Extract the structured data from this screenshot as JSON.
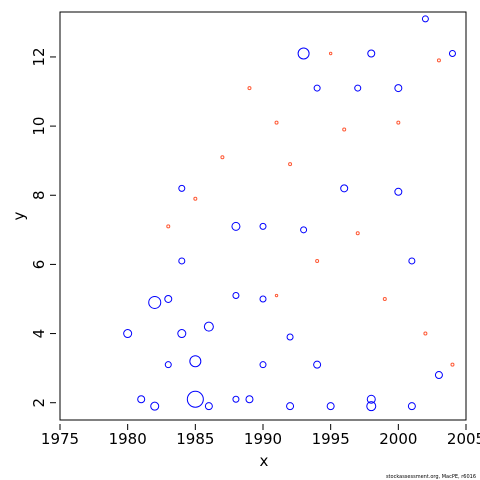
{
  "chart_data": {
    "type": "scatter",
    "title": "",
    "xlabel": "x",
    "ylabel": "y",
    "xlim": [
      1975,
      2005
    ],
    "ylim": [
      1.5,
      13.3
    ],
    "xticks": [
      1975,
      1980,
      1985,
      1990,
      1995,
      2000,
      2005
    ],
    "yticks": [
      2,
      4,
      6,
      8,
      10,
      12
    ],
    "grid": false,
    "legend": "none",
    "footnote": "stockassessment.org, MacPE, r6016",
    "colors": {
      "positive": "#0000ff",
      "negative": "#ff5a36",
      "axis": "#000000"
    },
    "series": [
      {
        "marker": "circle-open",
        "color": "#0000ff",
        "points": [
          {
            "x": 1980,
            "y": 4,
            "s": 0.4
          },
          {
            "x": 1981,
            "y": 2.1,
            "s": 0.35
          },
          {
            "x": 1982,
            "y": 1.9,
            "s": 0.4
          },
          {
            "x": 1982,
            "y": 4.9,
            "s": 0.6
          },
          {
            "x": 1983,
            "y": 3.1,
            "s": 0.3
          },
          {
            "x": 1983,
            "y": 5,
            "s": 0.35
          },
          {
            "x": 1984,
            "y": 4,
            "s": 0.4
          },
          {
            "x": 1984,
            "y": 6.1,
            "s": 0.3
          },
          {
            "x": 1984,
            "y": 8.2,
            "s": 0.3
          },
          {
            "x": 1985,
            "y": 2.1,
            "s": 0.8
          },
          {
            "x": 1985,
            "y": 3.2,
            "s": 0.55
          },
          {
            "x": 1986,
            "y": 4.2,
            "s": 0.45
          },
          {
            "x": 1986,
            "y": 1.9,
            "s": 0.35
          },
          {
            "x": 1988,
            "y": 7.1,
            "s": 0.4
          },
          {
            "x": 1988,
            "y": 5.1,
            "s": 0.3
          },
          {
            "x": 1988,
            "y": 2.1,
            "s": 0.3
          },
          {
            "x": 1989,
            "y": 2.1,
            "s": 0.35
          },
          {
            "x": 1990,
            "y": 7.1,
            "s": 0.3
          },
          {
            "x": 1990,
            "y": 5,
            "s": 0.3
          },
          {
            "x": 1990,
            "y": 3.1,
            "s": 0.3
          },
          {
            "x": 1992,
            "y": 1.9,
            "s": 0.35
          },
          {
            "x": 1992,
            "y": 3.9,
            "s": 0.3
          },
          {
            "x": 1993,
            "y": 12.1,
            "s": 0.55
          },
          {
            "x": 1993,
            "y": 7,
            "s": 0.3
          },
          {
            "x": 1994,
            "y": 11.1,
            "s": 0.3
          },
          {
            "x": 1994,
            "y": 3.1,
            "s": 0.35
          },
          {
            "x": 1995,
            "y": 1.9,
            "s": 0.35
          },
          {
            "x": 1996,
            "y": 8.2,
            "s": 0.35
          },
          {
            "x": 1997,
            "y": 11.1,
            "s": 0.3
          },
          {
            "x": 1998,
            "y": 12.1,
            "s": 0.35
          },
          {
            "x": 1998,
            "y": 2.1,
            "s": 0.4
          },
          {
            "x": 1998,
            "y": 1.9,
            "s": 0.45
          },
          {
            "x": 2000,
            "y": 11.1,
            "s": 0.35
          },
          {
            "x": 2000,
            "y": 8.1,
            "s": 0.35
          },
          {
            "x": 2001,
            "y": 1.9,
            "s": 0.35
          },
          {
            "x": 2001,
            "y": 6.1,
            "s": 0.3
          },
          {
            "x": 2002,
            "y": 13.1,
            "s": 0.3
          },
          {
            "x": 2003,
            "y": 2.8,
            "s": 0.35
          },
          {
            "x": 2004,
            "y": 12.1,
            "s": 0.3
          }
        ]
      },
      {
        "marker": "circle-open",
        "color": "#ff5a36",
        "points": [
          {
            "x": 1983,
            "y": 7.1,
            "s": 0.15
          },
          {
            "x": 1985,
            "y": 7.9,
            "s": 0.15
          },
          {
            "x": 1987,
            "y": 9.1,
            "s": 0.15
          },
          {
            "x": 1989,
            "y": 11.1,
            "s": 0.15
          },
          {
            "x": 1991,
            "y": 10.1,
            "s": 0.15
          },
          {
            "x": 1992,
            "y": 8.9,
            "s": 0.15
          },
          {
            "x": 1994,
            "y": 6.1,
            "s": 0.15
          },
          {
            "x": 1996,
            "y": 9.9,
            "s": 0.15
          },
          {
            "x": 1997,
            "y": 6.9,
            "s": 0.15
          },
          {
            "x": 1999,
            "y": 5,
            "s": 0.15
          },
          {
            "x": 2000,
            "y": 10.1,
            "s": 0.15
          },
          {
            "x": 2002,
            "y": 4,
            "s": 0.15
          },
          {
            "x": 2003,
            "y": 11.9,
            "s": 0.15
          },
          {
            "x": 2004,
            "y": 3.1,
            "s": 0.15
          },
          {
            "x": 1995,
            "y": 12.1,
            "s": 0.12
          },
          {
            "x": 1991,
            "y": 5.1,
            "s": 0.12
          }
        ]
      }
    ]
  }
}
